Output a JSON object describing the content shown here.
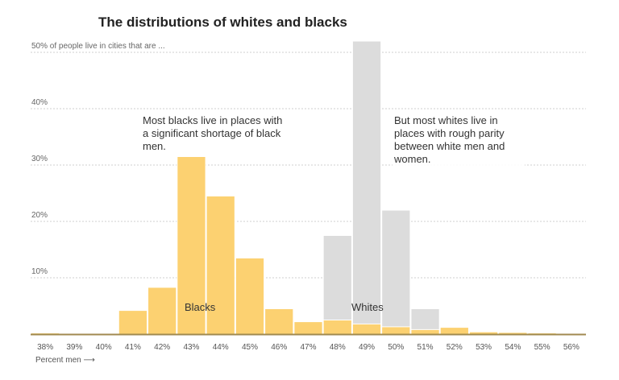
{
  "chart_data": {
    "type": "bar",
    "title": "The distributions of whites and blacks",
    "ytitle": "50% of people live in cities that are ...",
    "xlabel": "Percent men",
    "xlabel_arrow": "⟶",
    "ylim": [
      0,
      50
    ],
    "y_ticks": [
      0,
      10,
      20,
      30,
      40,
      50
    ],
    "y_tick_labels": [
      "",
      "10%",
      "20%",
      "30%",
      "40%",
      ""
    ],
    "grid": true,
    "categories": [
      "38%",
      "39%",
      "40%",
      "41%",
      "42%",
      "43%",
      "44%",
      "45%",
      "46%",
      "47%",
      "48%",
      "49%",
      "50%",
      "51%",
      "52%",
      "53%",
      "54%",
      "55%",
      "56%"
    ],
    "series": [
      {
        "name": "Whites",
        "color": "#dcdcdc",
        "values": [
          0,
          0,
          0,
          0,
          0,
          0,
          0,
          0,
          0,
          0,
          17.5,
          52,
          22,
          4.5,
          0,
          0,
          0,
          0,
          0
        ]
      },
      {
        "name": "Blacks",
        "color": "#fcd171",
        "values": [
          0.2,
          0,
          0,
          4.2,
          8.3,
          31.5,
          24.5,
          13.5,
          4.5,
          2.2,
          2.5,
          1.8,
          1.3,
          0.8,
          1.2,
          0.4,
          0.3,
          0.2,
          0.1
        ]
      }
    ],
    "annotations": [
      "Most blacks live in places with a significant shortage of black men.",
      "But most whites live in places with rough parity between white men and women."
    ]
  }
}
